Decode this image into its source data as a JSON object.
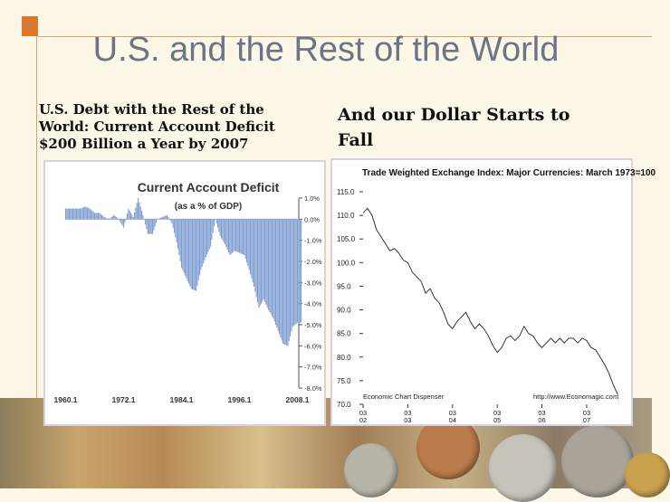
{
  "slide": {
    "title": "U.S. and the Rest of the World",
    "left_caption": "U.S. Debt with the Rest of the World: Current Account Deficit $200 Billion a Year by 2007",
    "right_caption": "And our Dollar Starts to Fall"
  },
  "colors": {
    "accent": "#d9772b",
    "title": "#6a7585",
    "bars": "#7f9dd0",
    "line": "#222222"
  },
  "chart_data": [
    {
      "type": "bar",
      "title": "Current Account Deficit",
      "subtitle": "(as a % of GDP)",
      "x_tick_labels": [
        "1960.1",
        "1972.1",
        "1984.1",
        "1996.1",
        "2008.1"
      ],
      "y_tick_labels": [
        "1.0%",
        "0.0%",
        "-1.0%",
        "-2.0%",
        "-3.0%",
        "-4.0%",
        "-5.0%",
        "-6.0%",
        "-7.0%",
        "-8.0%"
      ],
      "ylim": [
        -8.0,
        1.0
      ],
      "x_range": [
        1960,
        2008
      ],
      "series": [
        {
          "x": [
            1960,
            1961,
            1962,
            1963,
            1964,
            1965,
            1966,
            1967,
            1968,
            1969,
            1970,
            1971,
            1972,
            1973,
            1974,
            1975,
            1976,
            1977,
            1978,
            1979,
            1980,
            1981,
            1982,
            1983,
            1984,
            1985,
            1986,
            1987,
            1988,
            1989,
            1990,
            1991,
            1992,
            1993,
            1994,
            1995,
            1996,
            1997,
            1998,
            1999,
            2000,
            2001,
            2002,
            2003,
            2004,
            2005,
            2006,
            2007,
            2008
          ],
          "values": [
            0.5,
            0.5,
            0.5,
            0.5,
            0.6,
            0.5,
            0.3,
            0.3,
            0.1,
            0.0,
            0.2,
            0.0,
            -0.4,
            0.5,
            0.1,
            1.0,
            0.2,
            -0.7,
            -0.7,
            0.0,
            0.1,
            0.2,
            -0.2,
            -1.1,
            -2.3,
            -2.8,
            -3.3,
            -3.4,
            -2.4,
            -1.8,
            -1.3,
            0.0,
            -0.8,
            -1.2,
            -1.7,
            -1.5,
            -1.6,
            -1.7,
            -2.4,
            -3.2,
            -4.2,
            -3.8,
            -4.3,
            -4.7,
            -5.3,
            -5.9,
            -6.0,
            -5.1,
            -4.9
          ]
        }
      ]
    },
    {
      "type": "line",
      "title": "Trade Weighted Exchange Index: Major Currencies: March 1973=100",
      "y_tick_labels": [
        "115.0",
        "110.0",
        "105.0",
        "100.0",
        "95.0",
        "90.0",
        "85.0",
        "80.0",
        "75.0",
        "70.0"
      ],
      "ylim": [
        70.0,
        115.0
      ],
      "x_tick_labels": [
        [
          "03",
          "02"
        ],
        [
          "03",
          "03"
        ],
        [
          "03",
          "04"
        ],
        [
          "03",
          "05"
        ],
        [
          "03",
          "06"
        ],
        [
          "03",
          "07"
        ]
      ],
      "source_left": "Economic Chart Dispenser",
      "source_right": "http://www.Economagic.com",
      "series": [
        {
          "x": [
            2002.0,
            2002.1,
            2002.2,
            2002.3,
            2002.4,
            2002.5,
            2002.6,
            2002.7,
            2002.8,
            2002.9,
            2003.0,
            2003.1,
            2003.2,
            2003.3,
            2003.4,
            2003.5,
            2003.6,
            2003.7,
            2003.8,
            2003.9,
            2004.0,
            2004.1,
            2004.2,
            2004.3,
            2004.4,
            2004.5,
            2004.6,
            2004.7,
            2004.8,
            2004.9,
            2005.0,
            2005.1,
            2005.2,
            2005.3,
            2005.4,
            2005.5,
            2005.6,
            2005.7,
            2005.8,
            2005.9,
            2006.0,
            2006.1,
            2006.2,
            2006.3,
            2006.4,
            2006.5,
            2006.6,
            2006.7,
            2006.8,
            2006.9,
            2007.0,
            2007.1,
            2007.2,
            2007.3,
            2007.4,
            2007.5,
            2007.6,
            2007.7
          ],
          "values": [
            110.5,
            111.5,
            110.0,
            107.0,
            105.5,
            104.0,
            102.5,
            103.0,
            102.0,
            100.5,
            100.0,
            98.0,
            97.0,
            96.0,
            93.5,
            94.5,
            92.5,
            91.5,
            89.5,
            87.0,
            86.0,
            87.5,
            88.5,
            89.5,
            87.5,
            86.0,
            87.0,
            86.0,
            84.5,
            82.5,
            81.0,
            82.0,
            84.0,
            84.5,
            83.5,
            84.5,
            86.5,
            85.0,
            84.5,
            83.0,
            82.0,
            83.0,
            84.0,
            83.0,
            84.0,
            83.0,
            84.0,
            84.0,
            83.0,
            84.0,
            83.5,
            82.0,
            81.5,
            80.0,
            78.5,
            76.5,
            74.0,
            72.0
          ]
        }
      ]
    }
  ]
}
